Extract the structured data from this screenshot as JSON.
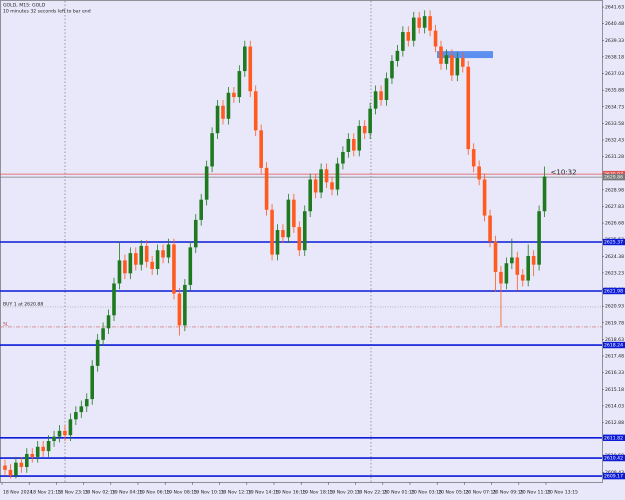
{
  "chart_data": {
    "type": "candlestick",
    "title": "GOLD, M15: GOLD",
    "subtitle": "10 minutes 32 seconds left to bar end",
    "countdown": "<10:32",
    "buy_label": "BUY 1 at 2620.88",
    "sl_label": "SL",
    "up_color": "#1f7a1f",
    "down_color": "#ff5a1f",
    "ylim": [
      2608.9,
      2641.98
    ],
    "yticks": [
      2641.63,
      2640.48,
      2639.33,
      2638.18,
      2637.03,
      2635.88,
      2634.73,
      2633.58,
      2632.43,
      2631.28,
      2630.13,
      2628.98,
      2627.83,
      2626.68,
      2625.53,
      2624.38,
      2623.23,
      2622.08,
      2620.93,
      2619.78,
      2618.63,
      2617.48,
      2616.33,
      2615.18,
      2614.03,
      2612.88,
      2611.73,
      2610.58,
      2609.43
    ],
    "x_labels": [
      "18 Nov 2024",
      "18 Nov 21:15",
      "18 Nov 23:15",
      "19 Nov 02:15",
      "19 Nov 04:15",
      "19 Nov 06:15",
      "19 Nov 08:15",
      "19 Nov 10:15",
      "19 Nov 12:15",
      "19 Nov 14:15",
      "19 Nov 16:15",
      "19 Nov 18:15",
      "19 Nov 20:15",
      "19 Nov 22:15",
      "20 Nov 01:15",
      "20 Nov 03:15",
      "20 Nov 05:15",
      "20 Nov 07:15",
      "20 Nov 09:15",
      "20 Nov 11:15",
      "20 Nov 13:15"
    ],
    "open": [
      2609.9,
      2609.6,
      2609.2,
      2610.1,
      2609.8,
      2610.7,
      2610.5,
      2611.2,
      2610.9,
      2611.6,
      2611.9,
      2612.3,
      2612.0,
      2613.1,
      2613.6,
      2614.0,
      2614.5,
      2616.8,
      2618.6,
      2619.4,
      2620.3,
      2622.5,
      2624.1,
      2623.2,
      2624.6,
      2623.8,
      2625.1,
      2624.0,
      2623.5,
      2624.8,
      2624.3,
      2625.2,
      2621.8,
      2619.6,
      2622.4,
      2625.0,
      2626.9,
      2628.3,
      2630.6,
      2632.9,
      2634.8,
      2633.9,
      2635.7,
      2635.4,
      2637.2,
      2638.9,
      2635.8,
      2633.1,
      2630.5,
      2627.6,
      2624.5,
      2626.2,
      2625.7,
      2628.3,
      2626.4,
      2624.8,
      2627.5,
      2629.7,
      2628.8,
      2630.4,
      2629.5,
      2629.0,
      2630.8,
      2631.6,
      2632.5,
      2631.7,
      2633.4,
      2632.9,
      2634.6,
      2635.8,
      2635.2,
      2636.7,
      2637.9,
      2638.6,
      2639.9,
      2639.3,
      2640.9,
      2640.2,
      2641.0,
      2640.0,
      2638.9,
      2637.7,
      2638.3,
      2636.9,
      2638.1,
      2637.5,
      2631.8,
      2630.6,
      2629.7,
      2627.2,
      2625.4,
      2623.3,
      2622.5,
      2623.9,
      2624.3,
      2623.1,
      2622.7,
      2624.4,
      2623.8,
      2627.5
    ],
    "high": [
      2610.3,
      2610.0,
      2610.5,
      2610.5,
      2611.1,
      2611.1,
      2611.6,
      2611.6,
      2612.0,
      2612.3,
      2612.7,
      2612.7,
      2613.5,
      2614.0,
      2614.4,
      2614.9,
      2617.2,
      2619.0,
      2619.8,
      2620.7,
      2622.9,
      2625.4,
      2624.5,
      2625.0,
      2625.0,
      2625.5,
      2625.5,
      2624.4,
      2625.2,
      2625.2,
      2625.6,
      2625.6,
      2622.2,
      2622.8,
      2625.4,
      2627.3,
      2628.7,
      2631.0,
      2633.3,
      2635.2,
      2635.2,
      2636.1,
      2636.1,
      2637.6,
      2639.3,
      2639.3,
      2636.2,
      2633.5,
      2630.9,
      2628.0,
      2626.6,
      2626.6,
      2628.7,
      2628.7,
      2626.8,
      2627.9,
      2630.1,
      2630.1,
      2630.8,
      2630.8,
      2629.9,
      2631.2,
      2632.0,
      2632.9,
      2632.9,
      2633.8,
      2633.8,
      2635.0,
      2636.2,
      2636.2,
      2637.1,
      2638.3,
      2639.0,
      2640.3,
      2640.3,
      2641.3,
      2641.3,
      2641.4,
      2641.4,
      2640.4,
      2639.3,
      2638.7,
      2638.7,
      2638.5,
      2638.5,
      2637.9,
      2632.2,
      2631.0,
      2630.1,
      2627.6,
      2625.8,
      2623.7,
      2624.3,
      2625.6,
      2624.7,
      2623.5,
      2625.2,
      2624.8,
      2627.9,
      2630.6
    ],
    "low": [
      2609.2,
      2609.0,
      2609.0,
      2609.4,
      2609.4,
      2610.1,
      2610.1,
      2610.5,
      2610.5,
      2611.2,
      2611.5,
      2611.6,
      2611.6,
      2612.7,
      2613.2,
      2613.6,
      2614.1,
      2616.4,
      2618.2,
      2619.0,
      2619.9,
      2622.1,
      2622.8,
      2622.8,
      2623.4,
      2623.4,
      2623.6,
      2623.1,
      2623.1,
      2623.9,
      2623.9,
      2621.4,
      2618.9,
      2619.2,
      2622.0,
      2624.6,
      2626.5,
      2627.9,
      2630.2,
      2632.5,
      2633.5,
      2633.5,
      2635.0,
      2635.0,
      2636.8,
      2635.4,
      2632.7,
      2630.1,
      2627.2,
      2624.1,
      2624.1,
      2625.3,
      2625.3,
      2626.0,
      2624.4,
      2624.4,
      2627.1,
      2628.4,
      2628.4,
      2629.1,
      2628.6,
      2628.6,
      2630.4,
      2631.2,
      2631.3,
      2631.3,
      2632.5,
      2632.5,
      2634.2,
      2634.8,
      2634.8,
      2636.3,
      2637.5,
      2638.2,
      2638.9,
      2638.9,
      2639.8,
      2639.8,
      2639.6,
      2638.5,
      2637.3,
      2637.3,
      2636.5,
      2636.5,
      2637.1,
      2631.4,
      2630.2,
      2629.3,
      2626.8,
      2625.0,
      2621.9,
      2619.5,
      2622.1,
      2623.5,
      2622.0,
      2622.3,
      2622.3,
      2623.0,
      2623.4,
      2627.1
    ],
    "close": [
      2609.6,
      2609.2,
      2610.1,
      2609.8,
      2610.7,
      2610.5,
      2611.2,
      2610.9,
      2611.6,
      2611.9,
      2612.3,
      2612.0,
      2613.1,
      2613.6,
      2614.0,
      2614.5,
      2616.8,
      2618.6,
      2619.4,
      2620.3,
      2622.5,
      2624.1,
      2623.2,
      2624.6,
      2623.8,
      2625.1,
      2624.0,
      2623.5,
      2624.8,
      2624.3,
      2625.2,
      2621.8,
      2619.6,
      2622.4,
      2625.0,
      2626.9,
      2628.3,
      2630.6,
      2632.9,
      2634.8,
      2633.9,
      2635.7,
      2635.4,
      2637.2,
      2638.9,
      2635.8,
      2633.1,
      2630.5,
      2627.6,
      2624.5,
      2626.2,
      2625.7,
      2628.3,
      2626.4,
      2624.8,
      2627.5,
      2629.7,
      2628.8,
      2630.4,
      2629.5,
      2629.0,
      2630.8,
      2631.6,
      2632.5,
      2631.7,
      2633.4,
      2632.9,
      2634.6,
      2635.8,
      2635.2,
      2636.7,
      2637.9,
      2638.6,
      2639.9,
      2639.3,
      2640.9,
      2640.2,
      2641.0,
      2640.0,
      2638.9,
      2637.7,
      2638.3,
      2636.9,
      2638.1,
      2637.5,
      2631.8,
      2630.6,
      2629.7,
      2627.2,
      2625.4,
      2623.3,
      2622.5,
      2623.9,
      2624.3,
      2623.1,
      2622.7,
      2624.4,
      2623.8,
      2627.5,
      2629.9
    ],
    "levels": [
      {
        "value": 2625.37,
        "color": "#0b1bd6"
      },
      {
        "value": 2621.98,
        "color": "#0b1bd6"
      },
      {
        "value": 2618.24,
        "color": "#0b1bd6"
      },
      {
        "value": 2611.82,
        "color": "#0b1bd6"
      },
      {
        "value": 2610.42,
        "color": "#0b1bd6"
      },
      {
        "value": 2609.17,
        "color": "#0b1bd6"
      },
      {
        "value": 2630.07,
        "color": "#e05050"
      },
      {
        "value": 2629.86,
        "color": "#777777"
      }
    ],
    "buy_level": 2620.88,
    "sl_level": 2619.49,
    "zone": {
      "top": 2638.58,
      "bottom": 2638.1,
      "color": "#5b8ff0"
    }
  }
}
